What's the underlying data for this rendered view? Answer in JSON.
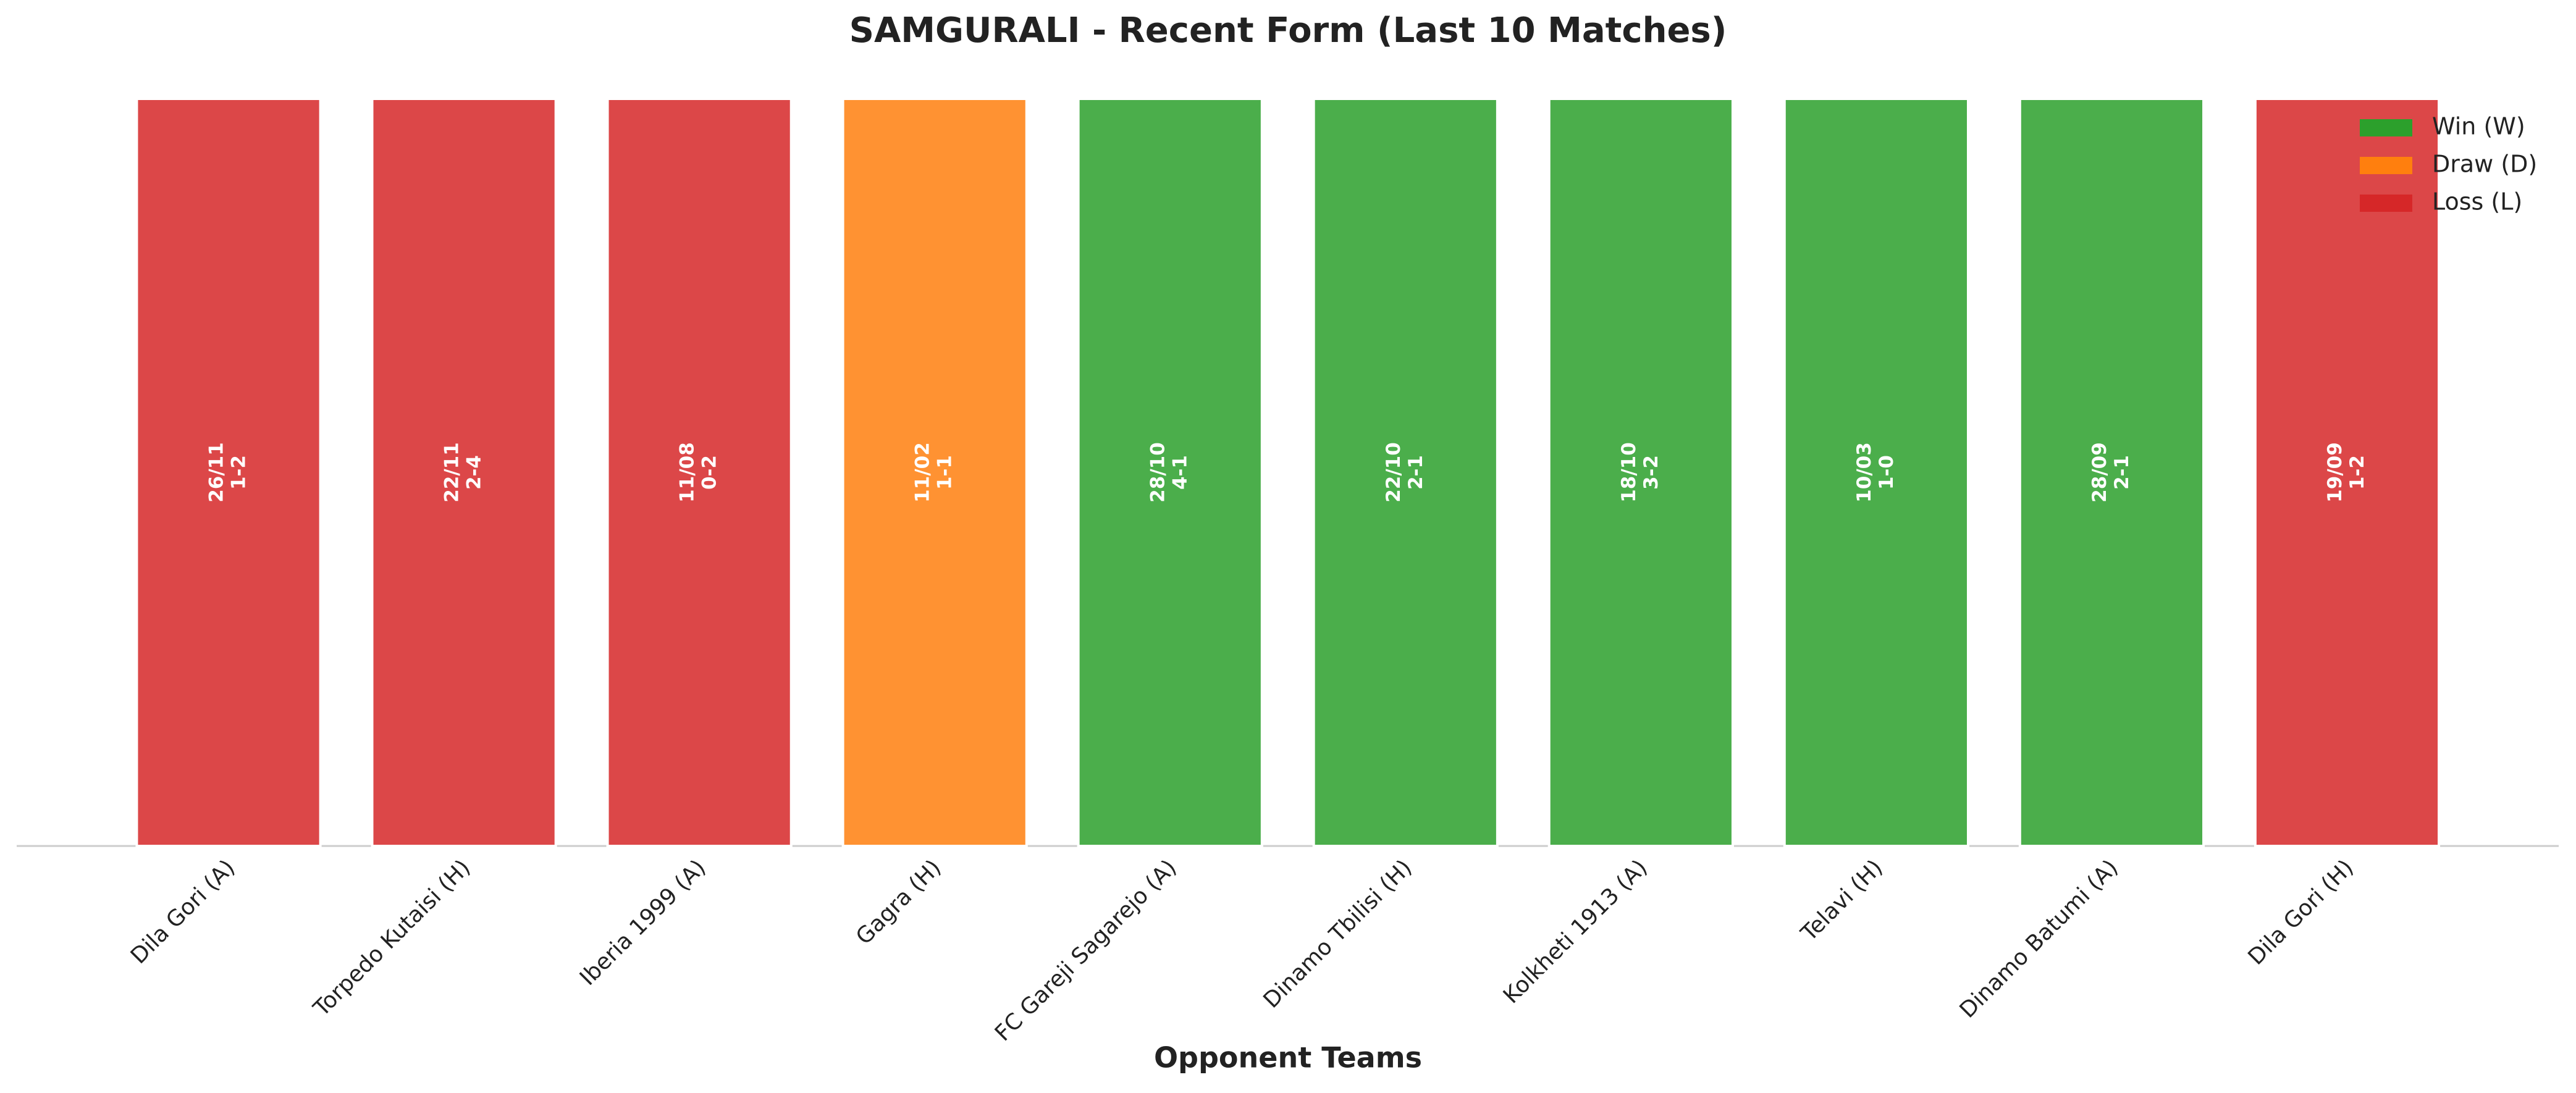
{
  "chart_data": {
    "type": "bar",
    "stacked": true,
    "title": "SAMGURALI - Recent Form (Last 10 Matches)",
    "x_label": "Opponent Teams",
    "categories": [
      "Dila Gori (A)",
      "Torpedo Kutaisi (H)",
      "Iberia 1999 (A)",
      "Gagra (H)",
      "FC Gareji Sagarejo (A)",
      "Dinamo Tbilisi (H)",
      "Kolkheti 1913 (A)",
      "Telavi (H)",
      "Dinamo Batumi (A)",
      "Dila Gori (H)"
    ],
    "dates": [
      "26/11",
      "22/11",
      "11/08",
      "11/02",
      "28/10",
      "22/10",
      "18/10",
      "10/03",
      "28/09",
      "19/09"
    ],
    "scores": [
      "1-2",
      "2-4",
      "0-2",
      "1-1",
      "4-1",
      "2-1",
      "3-2",
      "1-0",
      "2-1",
      "1-2"
    ],
    "series": [
      {
        "name": "Win (W)",
        "color": "#2ca02c",
        "values": [
          null,
          null,
          null,
          null,
          1,
          1,
          1,
          1,
          1,
          null
        ]
      },
      {
        "name": "Draw (D)",
        "color": "#ff7f0e",
        "values": [
          null,
          null,
          null,
          1,
          null,
          null,
          null,
          null,
          null,
          null
        ]
      },
      {
        "name": "Loss (L)",
        "color": "#d62728",
        "values": [
          1,
          1,
          1,
          null,
          null,
          null,
          null,
          null,
          null,
          1
        ]
      }
    ],
    "ylim": [
      0,
      1
    ],
    "legend": "upper right"
  }
}
